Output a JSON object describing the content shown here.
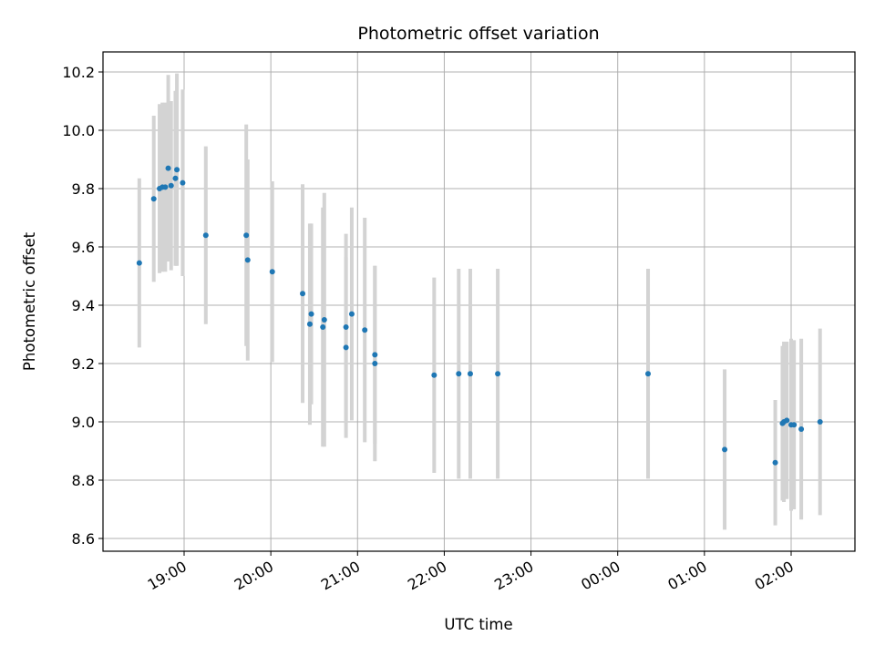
{
  "chart_data": {
    "type": "scatter",
    "title": "Photometric offset variation",
    "xlabel": "UTC time",
    "ylabel": "Photometric offset",
    "x_ticks": [
      "19:00",
      "20:00",
      "21:00",
      "22:00",
      "23:00",
      "00:00",
      "01:00",
      "02:00"
    ],
    "y_ticks": [
      "8.6",
      "8.8",
      "9.0",
      "9.2",
      "9.4",
      "9.6",
      "9.8",
      "10.0",
      "10.2"
    ],
    "grid": true,
    "marker_color": "#1f77b4",
    "errorbar_color": "#d3d3d3",
    "points": [
      {
        "t": "18:29",
        "y": 9.545,
        "yerr": 0.29
      },
      {
        "t": "18:39",
        "y": 9.765,
        "yerr": 0.285
      },
      {
        "t": "18:43",
        "y": 9.8,
        "yerr": 0.29
      },
      {
        "t": "18:45",
        "y": 9.805,
        "yerr": 0.29
      },
      {
        "t": "18:47",
        "y": 9.805,
        "yerr": 0.29
      },
      {
        "t": "18:49",
        "y": 9.87,
        "yerr": 0.32
      },
      {
        "t": "18:51",
        "y": 9.81,
        "yerr": 0.29
      },
      {
        "t": "18:54",
        "y": 9.835,
        "yerr": 0.3
      },
      {
        "t": "18:55",
        "y": 9.865,
        "yerr": 0.33
      },
      {
        "t": "18:59",
        "y": 9.82,
        "yerr": 0.32
      },
      {
        "t": "19:15",
        "y": 9.64,
        "yerr": 0.305
      },
      {
        "t": "19:43",
        "y": 9.64,
        "yerr": 0.38
      },
      {
        "t": "19:44",
        "y": 9.555,
        "yerr": 0.345
      },
      {
        "t": "20:01",
        "y": 9.515,
        "yerr": 0.31
      },
      {
        "t": "20:22",
        "y": 9.44,
        "yerr": 0.375
      },
      {
        "t": "20:27",
        "y": 9.335,
        "yerr": 0.345
      },
      {
        "t": "20:28",
        "y": 9.37,
        "yerr": 0.31
      },
      {
        "t": "20:36",
        "y": 9.325,
        "yerr": 0.41
      },
      {
        "t": "20:37",
        "y": 9.35,
        "yerr": 0.435
      },
      {
        "t": "20:52",
        "y": 9.325,
        "yerr": 0.32
      },
      {
        "t": "20:52",
        "y": 9.255,
        "yerr": 0.31
      },
      {
        "t": "20:56",
        "y": 9.37,
        "yerr": 0.365
      },
      {
        "t": "21:05",
        "y": 9.315,
        "yerr": 0.385
      },
      {
        "t": "21:12",
        "y": 9.23,
        "yerr": 0.305
      },
      {
        "t": "21:12",
        "y": 9.2,
        "yerr": 0.335
      },
      {
        "t": "21:53",
        "y": 9.16,
        "yerr": 0.335
      },
      {
        "t": "22:10",
        "y": 9.165,
        "yerr": 0.36
      },
      {
        "t": "22:18",
        "y": 9.165,
        "yerr": 0.36
      },
      {
        "t": "22:37",
        "y": 9.165,
        "yerr": 0.36
      },
      {
        "t": "00:21",
        "y": 9.165,
        "yerr": 0.36
      },
      {
        "t": "01:14",
        "y": 8.905,
        "yerr": 0.275
      },
      {
        "t": "01:49",
        "y": 8.86,
        "yerr": 0.215
      },
      {
        "t": "01:54",
        "y": 8.995,
        "yerr": 0.265
      },
      {
        "t": "01:55",
        "y": 9.0,
        "yerr": 0.275
      },
      {
        "t": "01:57",
        "y": 9.005,
        "yerr": 0.27
      },
      {
        "t": "02:00",
        "y": 8.99,
        "yerr": 0.295
      },
      {
        "t": "02:02",
        "y": 8.99,
        "yerr": 0.29
      },
      {
        "t": "02:07",
        "y": 8.975,
        "yerr": 0.31
      },
      {
        "t": "02:20",
        "y": 9.0,
        "yerr": 0.32
      }
    ]
  }
}
